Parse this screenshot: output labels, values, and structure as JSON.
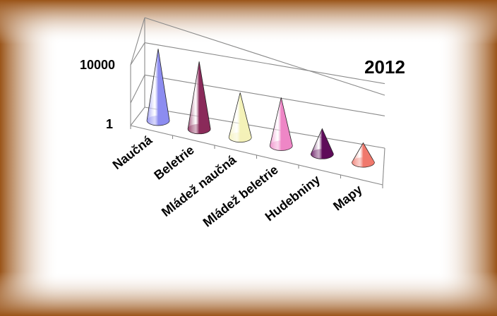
{
  "chart_data": {
    "type": "bar",
    "shape": "cone-3d",
    "title": "2012",
    "categories": [
      "Naučná",
      "Beletrie",
      "Mládež naučná",
      "Mládež beletrie",
      "Hudebniny",
      "Mapy"
    ],
    "values": [
      5000,
      3000,
      200,
      300,
      20,
      10
    ],
    "y_scale": "log",
    "ylim": [
      1,
      10000
    ],
    "ytick_labels": [
      "1",
      "10000"
    ],
    "colors": [
      "#8c8cf0",
      "#8a2a5a",
      "#f4f2b8",
      "#ee86c6",
      "#5e0c5a",
      "#f0786c"
    ],
    "frame_color": "#9a5418",
    "legend": "none",
    "grid": true
  }
}
